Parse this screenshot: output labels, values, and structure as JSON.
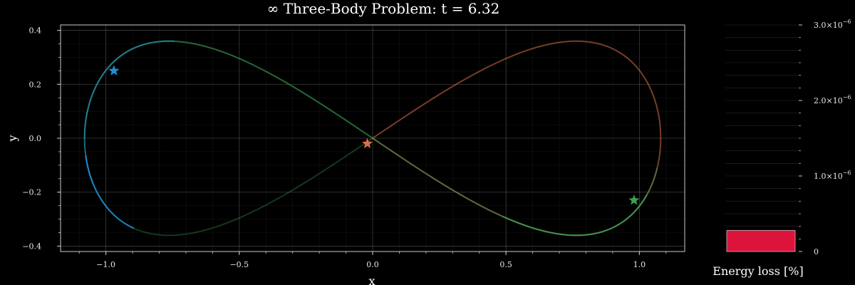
{
  "chart_data": [
    {
      "type": "line",
      "title": "∞ Three-Body Problem: t = 6.32",
      "xlabel": "x",
      "ylabel": "y",
      "xlim": [
        -1.17,
        1.17
      ],
      "ylim": [
        -0.42,
        0.42
      ],
      "xticks": [
        -1.0,
        -0.5,
        0.0,
        0.5,
        1.0
      ],
      "yticks": [
        -0.4,
        -0.2,
        0.0,
        0.2,
        0.4
      ],
      "xtick_labels": [
        "−1.0",
        "−0.5",
        "0.0",
        "0.5",
        "1.0"
      ],
      "ytick_labels": [
        "−0.4",
        "−0.2",
        "0.0",
        "0.2",
        "0.4"
      ],
      "grid": true,
      "orbit": {
        "amplitude_x": 1.08,
        "amplitude_y": 0.36,
        "shape": "figure-eight"
      },
      "bodies": [
        {
          "color": "#1f8fd6",
          "position": [
            -0.97,
            0.25
          ]
        },
        {
          "color": "#d8704a",
          "position": [
            -0.02,
            -0.02
          ]
        },
        {
          "color": "#3aa055",
          "position": [
            0.98,
            -0.23
          ]
        }
      ]
    },
    {
      "type": "bar",
      "xlabel": "Energy loss [%]",
      "ylim": [
        0,
        3e-06
      ],
      "yticks": [
        0,
        1e-06,
        2e-06,
        3e-06
      ],
      "ytick_labels": [
        "0",
        "1.0×10",
        "2.0×10",
        "3.0×10"
      ],
      "ytick_exponent": "−6",
      "values": [
        2.8e-07
      ],
      "bar_color": "#dc143c"
    }
  ]
}
